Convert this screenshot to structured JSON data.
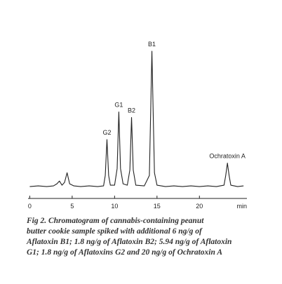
{
  "chart_data": {
    "type": "line",
    "x": [
      0,
      1,
      2,
      2.8,
      3.2,
      3.5,
      3.8,
      4.1,
      4.4,
      4.7,
      5.2,
      6,
      7,
      8,
      8.7,
      8.9,
      9.1,
      9.3,
      9.5,
      10.0,
      10.3,
      10.5,
      10.7,
      11.0,
      11.5,
      11.8,
      12.0,
      12.2,
      12.5,
      13.5,
      14.1,
      14.3,
      14.4,
      14.5,
      14.7,
      15.0,
      16,
      17,
      18,
      19,
      20,
      21,
      22,
      22.9,
      23.1,
      23.3,
      23.5,
      23.7,
      24.5,
      25.2
    ],
    "values": [
      2,
      2.5,
      2,
      2.5,
      4,
      6,
      3,
      5,
      12,
      4,
      2.5,
      2,
      2.5,
      2,
      2.5,
      10,
      36,
      10,
      3,
      3,
      15,
      56,
      15,
      4,
      3,
      14,
      52,
      14,
      3,
      2.5,
      10,
      70,
      100,
      70,
      12,
      3,
      2,
      2.5,
      2,
      2.5,
      2,
      2.5,
      2,
      3,
      10,
      19,
      10,
      3,
      2,
      2.5
    ],
    "color": "#222222",
    "xlim": [
      -0.2,
      25.6
    ],
    "ylim": [
      0,
      100
    ],
    "xticks": [
      0,
      5,
      10,
      15,
      20,
      {
        "value": 25,
        "label": "min"
      }
    ],
    "annotations": [
      {
        "text": "G2",
        "x": 9.1
      },
      {
        "text": "G1",
        "x": 10.5
      },
      {
        "text": "B2",
        "x": 12.0
      },
      {
        "text": "B1",
        "x": 14.4
      },
      {
        "text": "Ochratoxin A",
        "x": 23.3
      }
    ],
    "caption": [
      "Fig 2. Chromatogram of cannabis-containing peanut",
      "butter cookie sample spiked with additional  6 ng/g of",
      "Aflatoxin B1; 1.8 ng/g of Aflatoxin B2; 5.94 ng/g of Aflatoxin",
      "G1; 1.8 ng/g of Aflatoxins G2 and 20 ng/g of Ochratoxin A"
    ]
  }
}
